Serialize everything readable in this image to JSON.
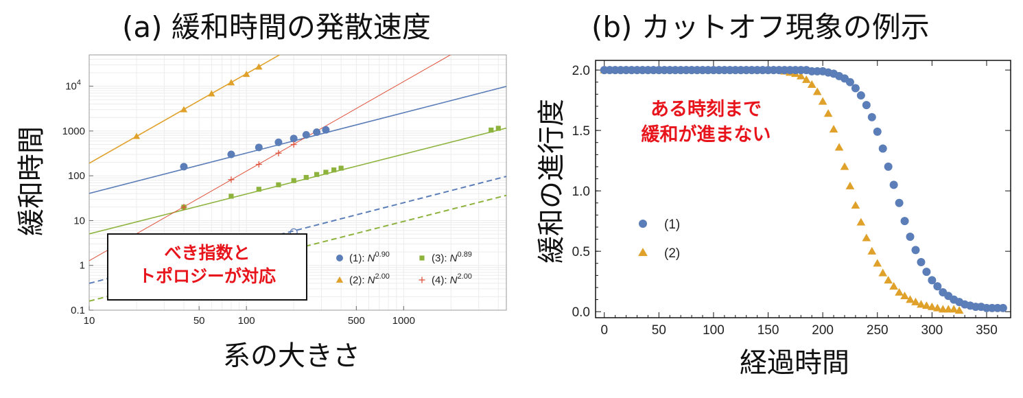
{
  "colors": {
    "blue": "#5b7db8",
    "orange": "#e0a12a",
    "green": "#8db33d",
    "red": "#e0503a",
    "annotation": "#e8141c"
  },
  "panel_a": {
    "title": "(a) 緩和時間の発散速度",
    "xlabel": "系の大きさ",
    "ylabel": "緩和時間",
    "annotation_lines": [
      "べき指数と",
      "トポロジーが対応"
    ]
  },
  "panel_b": {
    "title": "(b) カットオフ現象の例示",
    "xlabel": "経過時間",
    "ylabel": "緩和の進行度",
    "annotation_lines": [
      "ある時刻まで",
      "緩和が進まない"
    ]
  },
  "chart_data": [
    {
      "type": "scatter",
      "title": "(a) 緩和時間の発散速度",
      "xlabel": "系の大きさ",
      "ylabel": "緩和時間",
      "xscale": "log",
      "yscale": "log",
      "xlim": [
        10,
        4500
      ],
      "ylim": [
        0.1,
        50000
      ],
      "x_ticks": [
        10,
        50,
        100,
        500,
        1000
      ],
      "x_tick_labels": [
        "10",
        "50",
        "100",
        "500",
        "1000"
      ],
      "y_ticks": [
        0.1,
        1,
        10,
        100,
        1000,
        10000
      ],
      "y_tick_labels": [
        "0.1",
        "1",
        "10",
        "100",
        "1000",
        "10^4"
      ],
      "legend_position": "bottom-right",
      "series": [
        {
          "name": "(1): N^0.90",
          "label_prefix": "(1): ",
          "label_base": "N",
          "label_exp": "0.90",
          "marker": "circle",
          "color": "#5b7db8",
          "x": [
            40,
            80,
            120,
            160,
            200,
            240,
            280,
            320
          ],
          "y": [
            160,
            300,
            430,
            560,
            680,
            820,
            940,
            1060
          ],
          "fit": {
            "coef": 5.1,
            "exp": 0.9
          },
          "dashed": {
            "coef": 0.05,
            "exp": 0.9
          },
          "open_marker": {
            "x": 200,
            "y": 5.5
          }
        },
        {
          "name": "(2): N^2.00",
          "label_prefix": "(2): ",
          "label_base": "N",
          "label_exp": "2.00",
          "marker": "triangle",
          "color": "#e0a12a",
          "x": [
            20,
            40,
            60,
            80,
            100,
            120
          ],
          "y": [
            760,
            3000,
            6800,
            12000,
            18500,
            27000
          ],
          "fit": {
            "coef": 1.9,
            "exp": 2.0
          }
        },
        {
          "name": "(3): N^0.89",
          "label_prefix": "(3): ",
          "label_base": "N",
          "label_exp": "0.89",
          "marker": "square",
          "color": "#8db33d",
          "x": [
            40,
            80,
            120,
            160,
            200,
            240,
            280,
            320,
            360,
            400,
            3600,
            4000
          ],
          "y": [
            20,
            35,
            50,
            63,
            78,
            92,
            107,
            120,
            135,
            148,
            1050,
            1150
          ],
          "fit": {
            "coef": 0.65,
            "exp": 0.89
          },
          "dashed": {
            "coef": 0.0205,
            "exp": 0.89
          }
        },
        {
          "name": "(4): N^2.00",
          "label_prefix": "(4): ",
          "label_base": "N",
          "label_exp": "2.00",
          "marker": "plus",
          "color": "#e0503a",
          "x": [
            40,
            80,
            120,
            160,
            200
          ],
          "y": [
            20,
            82,
            180,
            320,
            500
          ],
          "fit": {
            "coef": 0.0127,
            "exp": 2.0
          }
        }
      ]
    },
    {
      "type": "scatter",
      "title": "(b) カットオフ現象の例示",
      "xlabel": "経過時間",
      "ylabel": "緩和の進行度",
      "xlim": [
        -8,
        372
      ],
      "ylim": [
        -0.05,
        2.08
      ],
      "x_ticks": [
        0,
        50,
        100,
        150,
        200,
        250,
        300,
        350
      ],
      "x_tick_labels": [
        "0",
        "50",
        "100",
        "150",
        "200",
        "250",
        "300",
        "350"
      ],
      "y_ticks": [
        0.0,
        0.5,
        1.0,
        1.5,
        2.0
      ],
      "y_tick_labels": [
        "0.0",
        "0.5",
        "1.0",
        "1.5",
        "2.0"
      ],
      "legend_position": "center-left",
      "series": [
        {
          "name": "(1)",
          "marker": "circle",
          "color": "#5b7db8",
          "x": [
            0,
            5,
            10,
            15,
            20,
            25,
            30,
            35,
            40,
            45,
            50,
            55,
            60,
            65,
            70,
            75,
            80,
            85,
            90,
            95,
            100,
            105,
            110,
            115,
            120,
            125,
            130,
            135,
            140,
            145,
            150,
            155,
            160,
            165,
            170,
            175,
            180,
            185,
            190,
            195,
            200,
            205,
            210,
            215,
            220,
            225,
            230,
            235,
            240,
            245,
            250,
            255,
            260,
            265,
            270,
            275,
            280,
            285,
            290,
            295,
            300,
            305,
            310,
            315,
            320,
            325,
            330,
            335,
            340,
            345,
            350,
            355,
            360,
            365
          ],
          "y": [
            2.0,
            2.0,
            2.0,
            2.0,
            2.0,
            2.0,
            2.0,
            2.0,
            2.0,
            2.0,
            2.0,
            2.0,
            2.0,
            2.0,
            2.0,
            2.0,
            2.0,
            2.0,
            2.0,
            2.0,
            2.0,
            2.0,
            2.0,
            2.0,
            2.0,
            2.0,
            2.0,
            2.0,
            2.0,
            2.0,
            2.0,
            2.0,
            2.0,
            2.0,
            2.0,
            2.0,
            2.0,
            2.0,
            1.99,
            1.99,
            1.99,
            1.98,
            1.97,
            1.95,
            1.93,
            1.9,
            1.85,
            1.79,
            1.71,
            1.61,
            1.49,
            1.35,
            1.2,
            1.05,
            0.9,
            0.75,
            0.62,
            0.51,
            0.41,
            0.33,
            0.26,
            0.21,
            0.16,
            0.13,
            0.1,
            0.08,
            0.06,
            0.05,
            0.04,
            0.04,
            0.03,
            0.03,
            0.03,
            0.03
          ]
        },
        {
          "name": "(2)",
          "marker": "triangle",
          "color": "#e0a12a",
          "x": [
            0,
            5,
            10,
            15,
            20,
            25,
            30,
            35,
            40,
            45,
            50,
            55,
            60,
            65,
            70,
            75,
            80,
            85,
            90,
            95,
            100,
            105,
            110,
            115,
            120,
            125,
            130,
            135,
            140,
            145,
            150,
            155,
            160,
            165,
            170,
            175,
            180,
            185,
            190,
            195,
            200,
            205,
            210,
            215,
            220,
            225,
            230,
            235,
            240,
            245,
            250,
            255,
            260,
            265,
            270,
            275,
            280,
            285,
            290,
            295,
            300,
            305,
            310,
            315,
            320,
            325
          ],
          "y": [
            2.0,
            2.0,
            2.0,
            2.0,
            2.0,
            2.0,
            2.0,
            2.0,
            2.0,
            2.0,
            2.0,
            2.0,
            2.0,
            2.0,
            2.0,
            2.0,
            2.0,
            2.0,
            2.0,
            2.0,
            2.0,
            2.0,
            2.0,
            2.0,
            2.0,
            2.0,
            2.0,
            2.0,
            2.0,
            2.0,
            2.0,
            2.0,
            2.0,
            1.99,
            1.98,
            1.97,
            1.95,
            1.92,
            1.88,
            1.82,
            1.74,
            1.64,
            1.51,
            1.36,
            1.2,
            1.04,
            0.88,
            0.74,
            0.61,
            0.5,
            0.4,
            0.32,
            0.26,
            0.21,
            0.16,
            0.13,
            0.1,
            0.08,
            0.06,
            0.05,
            0.04,
            0.03,
            0.02,
            0.02,
            0.02,
            0.01
          ]
        }
      ]
    }
  ]
}
